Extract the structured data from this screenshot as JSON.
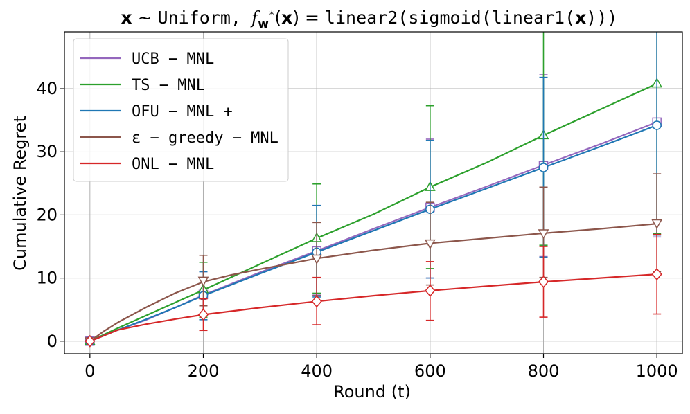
{
  "chart_data": {
    "type": "line",
    "title": "x ~ Uniform, f_{w*}(x) = linear2(sigmoid(linear1(x)))",
    "title_parts": {
      "x1": "x",
      "tilde": " ~ ",
      "uniform": "Uniform, ",
      "f": "f",
      "w": "w",
      "star": "*",
      "fx_open": "(",
      "x2": "x",
      "fx_close": ")",
      "eq": " = ",
      "func_open": "linear2(sigmoid(linear1(",
      "x3": "x",
      "func_close": ")))"
    },
    "xlabel": "Round (t)",
    "ylabel": "Cumulative Regret",
    "xlim": [
      -45,
      1045
    ],
    "ylim": [
      -2,
      49
    ],
    "xticks": [
      0,
      200,
      400,
      600,
      800,
      1000
    ],
    "yticks": [
      0,
      10,
      20,
      30,
      40
    ],
    "grid": true,
    "legend_position": "top-left",
    "series": [
      {
        "name": "UCB-MNL",
        "legend_text": "UCB − MNL",
        "color": "#9467bd",
        "marker": "square",
        "line": [
          [
            0,
            0
          ],
          [
            50,
            1.8
          ],
          [
            100,
            3.4
          ],
          [
            150,
            5.3
          ],
          [
            200,
            7.3
          ],
          [
            300,
            10.9
          ],
          [
            400,
            14.3
          ],
          [
            500,
            17.8
          ],
          [
            600,
            21.2
          ],
          [
            700,
            24.5
          ],
          [
            800,
            27.9
          ],
          [
            900,
            31.2
          ],
          [
            1000,
            34.7
          ]
        ],
        "points": [
          [
            0,
            0
          ],
          [
            200,
            7.4
          ],
          [
            400,
            14.3
          ],
          [
            600,
            21.2
          ],
          [
            800,
            27.8
          ],
          [
            1000,
            34.7
          ]
        ],
        "err": [
          [
            0,
            0,
            0
          ],
          [
            200,
            3.4,
            11.0
          ],
          [
            400,
            7.3,
            21.5
          ],
          [
            600,
            10.0,
            32.0
          ],
          [
            800,
            13.4,
            42.2
          ],
          [
            1000,
            16.5,
            51
          ]
        ]
      },
      {
        "name": "TS-MNL",
        "legend_text": "TS − MNL",
        "color": "#2ca02c",
        "marker": "triangle-up",
        "line": [
          [
            0,
            0
          ],
          [
            50,
            2.1
          ],
          [
            100,
            4.1
          ],
          [
            150,
            6.1
          ],
          [
            200,
            8.1
          ],
          [
            300,
            12.2
          ],
          [
            400,
            16.3
          ],
          [
            500,
            20.1
          ],
          [
            600,
            24.4
          ],
          [
            700,
            28.3
          ],
          [
            800,
            32.6
          ],
          [
            900,
            36.7
          ],
          [
            1000,
            40.8
          ]
        ],
        "points": [
          [
            0,
            0
          ],
          [
            200,
            8.2
          ],
          [
            400,
            16.3
          ],
          [
            600,
            24.4
          ],
          [
            800,
            32.6
          ],
          [
            1000,
            40.8
          ]
        ],
        "err": [
          [
            0,
            0,
            0
          ],
          [
            200,
            3.8,
            12.5
          ],
          [
            400,
            7.6,
            24.9
          ],
          [
            600,
            11.5,
            37.3
          ],
          [
            800,
            15.2,
            51
          ],
          [
            1000,
            17.0,
            51
          ]
        ]
      },
      {
        "name": "OFU-MNL+",
        "legend_text": "OFU − MNL +",
        "color": "#1f77b4",
        "marker": "circle",
        "line": [
          [
            0,
            0
          ],
          [
            50,
            1.8
          ],
          [
            100,
            3.5
          ],
          [
            150,
            5.3
          ],
          [
            200,
            7.2
          ],
          [
            300,
            10.7
          ],
          [
            400,
            14.1
          ],
          [
            500,
            17.5
          ],
          [
            600,
            20.9
          ],
          [
            700,
            24.2
          ],
          [
            800,
            27.5
          ],
          [
            900,
            30.8
          ],
          [
            1000,
            34.2
          ]
        ],
        "points": [
          [
            0,
            0
          ],
          [
            200,
            7.2
          ],
          [
            400,
            14.1
          ],
          [
            600,
            20.9
          ],
          [
            800,
            27.5
          ],
          [
            1000,
            34.2
          ]
        ],
        "err": [
          [
            0,
            0,
            0
          ],
          [
            200,
            3.4,
            11.0
          ],
          [
            400,
            7.0,
            21.5
          ],
          [
            600,
            10.0,
            31.8
          ],
          [
            800,
            13.3,
            41.8
          ],
          [
            1000,
            16.8,
            51
          ]
        ]
      },
      {
        "name": "ε-greedy-MNL",
        "legend_text": "ε − greedy − MNL",
        "color": "#8c564b",
        "marker": "triangle-down",
        "line": [
          [
            0,
            0
          ],
          [
            25,
            1.6
          ],
          [
            50,
            3.0
          ],
          [
            100,
            5.4
          ],
          [
            150,
            7.6
          ],
          [
            200,
            9.4
          ],
          [
            250,
            10.5
          ],
          [
            300,
            11.4
          ],
          [
            400,
            13.1
          ],
          [
            500,
            14.4
          ],
          [
            600,
            15.5
          ],
          [
            700,
            16.3
          ],
          [
            800,
            17.1
          ],
          [
            900,
            17.8
          ],
          [
            1000,
            18.6
          ]
        ],
        "points": [
          [
            0,
            0
          ],
          [
            200,
            9.6
          ],
          [
            400,
            13.1
          ],
          [
            600,
            15.5
          ],
          [
            800,
            17.1
          ],
          [
            1000,
            18.7
          ]
        ],
        "err": [
          [
            0,
            0,
            0
          ],
          [
            200,
            5.6,
            13.6
          ],
          [
            400,
            7.2,
            18.8
          ],
          [
            600,
            8.9,
            22.0
          ],
          [
            800,
            10.1,
            24.4
          ],
          [
            1000,
            11.0,
            26.5
          ]
        ]
      },
      {
        "name": "ONL-MNL",
        "legend_text": "ONL − MNL",
        "color": "#d62728",
        "marker": "diamond",
        "line": [
          [
            0,
            0
          ],
          [
            25,
            0.9
          ],
          [
            50,
            1.8
          ],
          [
            100,
            2.7
          ],
          [
            150,
            3.5
          ],
          [
            200,
            4.2
          ],
          [
            300,
            5.3
          ],
          [
            400,
            6.3
          ],
          [
            500,
            7.2
          ],
          [
            600,
            8.0
          ],
          [
            700,
            8.7
          ],
          [
            800,
            9.4
          ],
          [
            900,
            10.0
          ],
          [
            1000,
            10.6
          ]
        ],
        "points": [
          [
            0,
            0
          ],
          [
            200,
            4.2
          ],
          [
            400,
            6.3
          ],
          [
            600,
            8.0
          ],
          [
            800,
            9.4
          ],
          [
            1000,
            10.6
          ]
        ],
        "err": [
          [
            0,
            0,
            0
          ],
          [
            200,
            1.7,
            6.7
          ],
          [
            400,
            2.6,
            10.1
          ],
          [
            600,
            3.3,
            12.6
          ],
          [
            800,
            3.8,
            15.0
          ],
          [
            1000,
            4.3,
            16.9
          ]
        ]
      }
    ]
  }
}
